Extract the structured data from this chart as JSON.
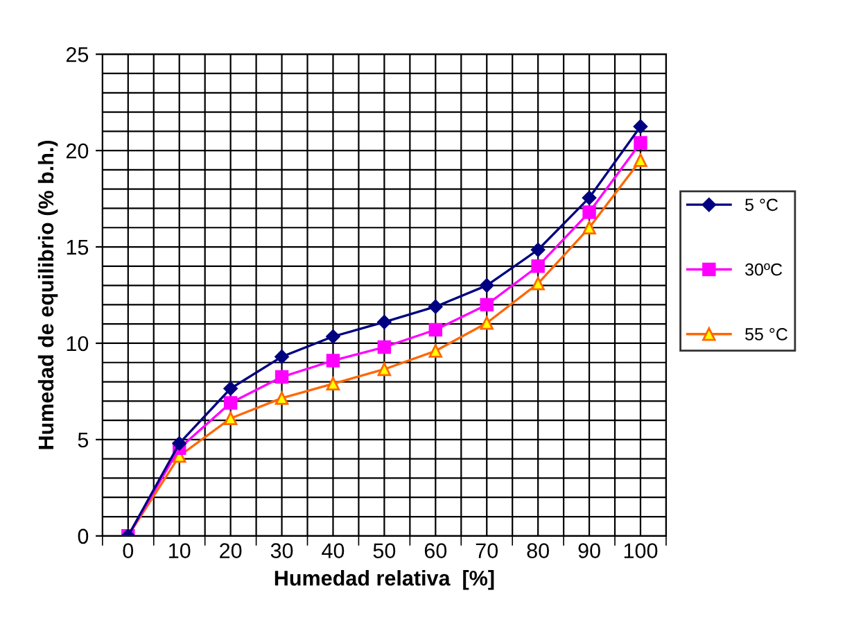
{
  "chart_data": {
    "type": "line",
    "xlabel": "Humedad relativa  [%]",
    "ylabel": "Humedad de equilibrio (% b.h.)",
    "categories": [
      "0",
      "10",
      "20",
      "30",
      "40",
      "50",
      "60",
      "70",
      "80",
      "90",
      "100"
    ],
    "ylim": [
      0,
      25
    ],
    "yticks": [
      0,
      5,
      10,
      15,
      20,
      25
    ],
    "grid": true,
    "legend": "right",
    "series": [
      {
        "name": "5 °C",
        "color": "#000080",
        "marker": "diamond",
        "values": [
          0,
          4.8,
          7.65,
          9.3,
          10.35,
          11.1,
          11.9,
          13.0,
          14.85,
          17.55,
          21.25
        ]
      },
      {
        "name": "30ºC",
        "color": "#ff00ff",
        "marker": "square",
        "values": [
          0,
          4.55,
          6.9,
          8.25,
          9.1,
          9.8,
          10.7,
          12.0,
          14.0,
          16.8,
          20.4
        ]
      },
      {
        "name": "55 °C",
        "color": "#ff6600",
        "marker": "triangle",
        "values": [
          0,
          4.15,
          6.1,
          7.15,
          7.9,
          8.65,
          9.6,
          11.05,
          13.1,
          16.0,
          19.5
        ]
      }
    ]
  }
}
